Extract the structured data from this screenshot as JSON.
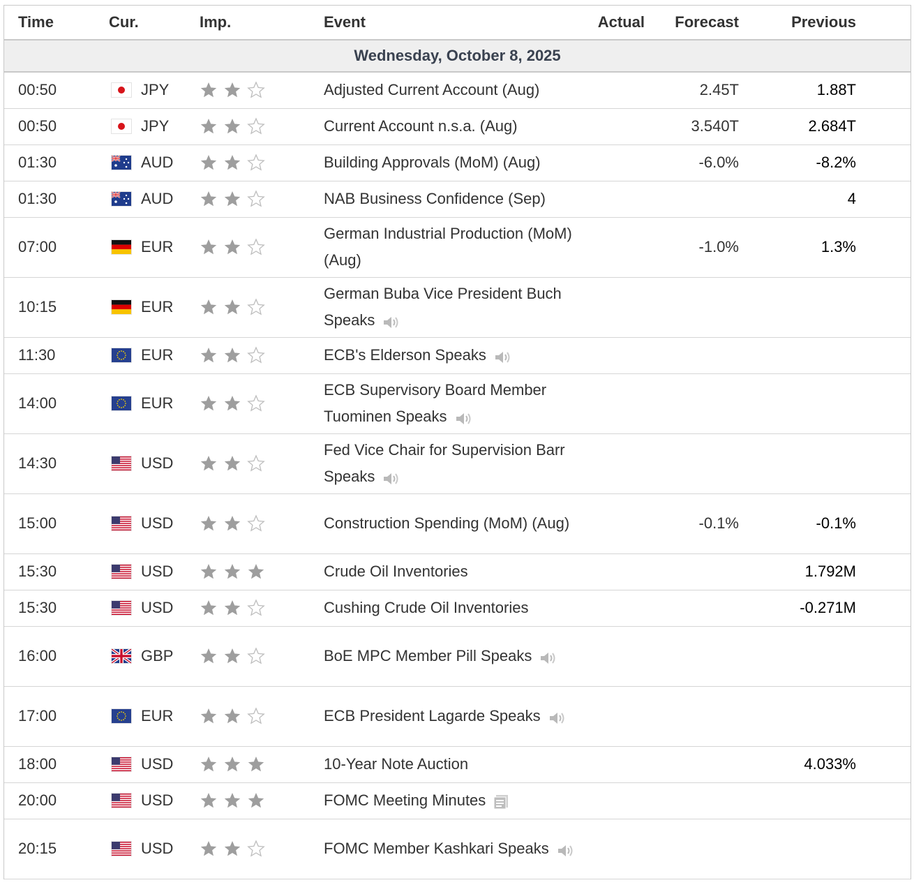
{
  "headers": {
    "time": "Time",
    "cur": "Cur.",
    "imp": "Imp.",
    "event": "Event",
    "actual": "Actual",
    "forecast": "Forecast",
    "previous": "Previous"
  },
  "date_label": "Wednesday, October 8, 2025",
  "colors": {
    "star_filled": "#9e9e9e",
    "star_empty": "#bdbdbd",
    "border": "#c9c9c9",
    "date_bg": "#efefef"
  },
  "rows": [
    {
      "time": "00:50",
      "flag": "jp",
      "currency": "JPY",
      "stars": 2,
      "event": "Adjusted Current Account (Aug)",
      "icon": "",
      "actual": "",
      "forecast": "2.45T",
      "previous": "1.88T"
    },
    {
      "time": "00:50",
      "flag": "jp",
      "currency": "JPY",
      "stars": 2,
      "event": "Current Account n.s.a. (Aug)",
      "icon": "",
      "actual": "",
      "forecast": "3.540T",
      "previous": "2.684T"
    },
    {
      "time": "01:30",
      "flag": "au",
      "currency": "AUD",
      "stars": 2,
      "event": "Building Approvals (MoM) (Aug)",
      "icon": "",
      "actual": "",
      "forecast": "-6.0%",
      "previous": "-8.2%"
    },
    {
      "time": "01:30",
      "flag": "au",
      "currency": "AUD",
      "stars": 2,
      "event": "NAB Business Confidence (Sep)",
      "icon": "",
      "actual": "",
      "forecast": "",
      "previous": "4"
    },
    {
      "time": "07:00",
      "flag": "de",
      "currency": "EUR",
      "stars": 2,
      "event": "German Industrial Production (MoM) (Aug)",
      "icon": "",
      "actual": "",
      "forecast": "-1.0%",
      "previous": "1.3%"
    },
    {
      "time": "10:15",
      "flag": "de",
      "currency": "EUR",
      "stars": 2,
      "event": "German Buba Vice President Buch Speaks",
      "icon": "speaker",
      "actual": "",
      "forecast": "",
      "previous": ""
    },
    {
      "time": "11:30",
      "flag": "eu",
      "currency": "EUR",
      "stars": 2,
      "event": "ECB's Elderson Speaks",
      "icon": "speaker",
      "actual": "",
      "forecast": "",
      "previous": ""
    },
    {
      "time": "14:00",
      "flag": "eu",
      "currency": "EUR",
      "stars": 2,
      "event": "ECB Supervisory Board Member Tuominen Speaks",
      "icon": "speaker",
      "actual": "",
      "forecast": "",
      "previous": ""
    },
    {
      "time": "14:30",
      "flag": "us",
      "currency": "USD",
      "stars": 2,
      "event": "Fed Vice Chair for Supervision Barr Speaks",
      "icon": "speaker",
      "actual": "",
      "forecast": "",
      "previous": ""
    },
    {
      "time": "15:00",
      "flag": "us",
      "currency": "USD",
      "stars": 2,
      "event": "Construction Spending (MoM) (Aug)",
      "icon": "",
      "actual": "",
      "forecast": "-0.1%",
      "previous": "-0.1%"
    },
    {
      "time": "15:30",
      "flag": "us",
      "currency": "USD",
      "stars": 3,
      "event": "Crude Oil Inventories",
      "icon": "",
      "actual": "",
      "forecast": "",
      "previous": "1.792M"
    },
    {
      "time": "15:30",
      "flag": "us",
      "currency": "USD",
      "stars": 2,
      "event": "Cushing Crude Oil Inventories",
      "icon": "",
      "actual": "",
      "forecast": "",
      "previous": "-0.271M"
    },
    {
      "time": "16:00",
      "flag": "gb",
      "currency": "GBP",
      "stars": 2,
      "event": "BoE MPC Member Pill Speaks",
      "icon": "speaker",
      "actual": "",
      "forecast": "",
      "previous": ""
    },
    {
      "time": "17:00",
      "flag": "eu",
      "currency": "EUR",
      "stars": 2,
      "event": "ECB President Lagarde Speaks",
      "icon": "speaker",
      "actual": "",
      "forecast": "",
      "previous": ""
    },
    {
      "time": "18:00",
      "flag": "us",
      "currency": "USD",
      "stars": 3,
      "event": "10-Year Note Auction",
      "icon": "",
      "actual": "",
      "forecast": "",
      "previous": "4.033%"
    },
    {
      "time": "20:00",
      "flag": "us",
      "currency": "USD",
      "stars": 3,
      "event": "FOMC Meeting Minutes",
      "icon": "report",
      "actual": "",
      "forecast": "",
      "previous": ""
    },
    {
      "time": "20:15",
      "flag": "us",
      "currency": "USD",
      "stars": 2,
      "event": "FOMC Member Kashkari Speaks",
      "icon": "speaker",
      "actual": "",
      "forecast": "",
      "previous": ""
    }
  ]
}
